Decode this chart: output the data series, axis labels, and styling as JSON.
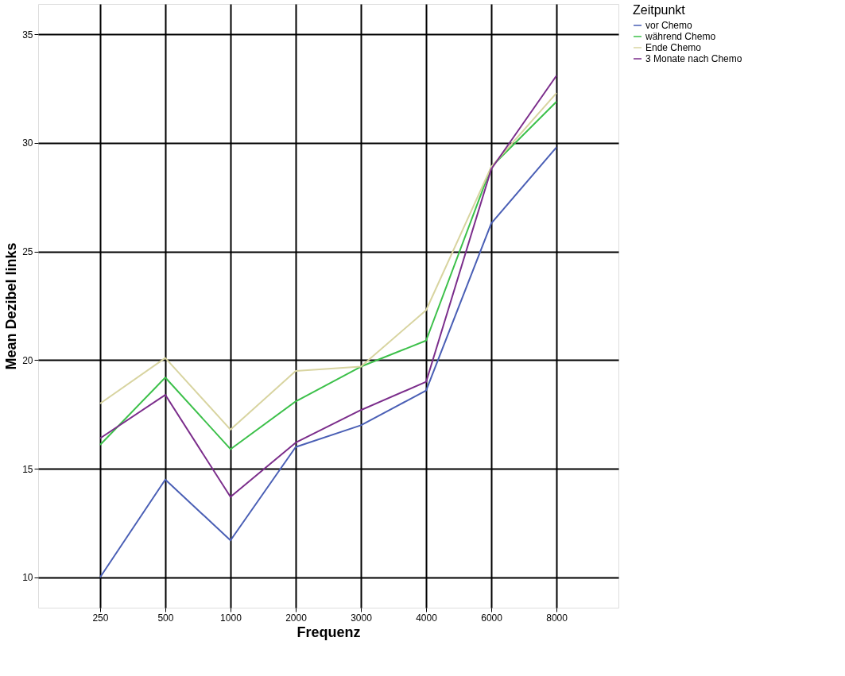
{
  "chart_data": {
    "type": "line",
    "xlabel": "Frequenz",
    "ylabel": "Mean Dezibel links",
    "legend_title": "Zeitpunkt",
    "categories": [
      "250",
      "500",
      "1000",
      "2000",
      "3000",
      "4000",
      "6000",
      "8000"
    ],
    "series": [
      {
        "name": "vor Chemo",
        "color": "#4a5fb5",
        "values": [
          10.0,
          14.5,
          11.7,
          16.0,
          17.0,
          18.6,
          26.3,
          29.8
        ]
      },
      {
        "name": "während Chemo",
        "color": "#3cc04a",
        "values": [
          16.1,
          19.2,
          15.9,
          18.1,
          19.7,
          20.9,
          28.9,
          31.9
        ]
      },
      {
        "name": "Ende Chemo",
        "color": "#d8d4a0",
        "values": [
          18.0,
          20.1,
          16.8,
          19.5,
          19.7,
          22.3,
          28.9,
          32.3
        ]
      },
      {
        "name": "3 Monate nach Chemo",
        "color": "#7b2d8b",
        "values": [
          16.4,
          18.4,
          13.7,
          16.2,
          17.7,
          19.0,
          28.8,
          33.1
        ]
      }
    ],
    "ylim": [
      8.6,
      36.4
    ],
    "yticks": [
      10,
      15,
      20,
      25,
      30,
      35
    ],
    "grid": true,
    "legend": "right"
  }
}
